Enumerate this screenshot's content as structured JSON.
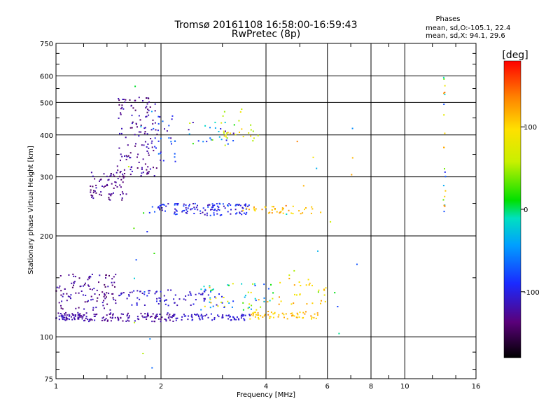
{
  "chart_data": {
    "type": "scatter",
    "title": "Tromsø 20161108 16:58:00-16:59:43",
    "subtitle": "RwPretec (8p)",
    "xlabel": "Frequency [MHz]",
    "ylabel": "Stationary phase Virtual Height [km]",
    "x_scale": "log",
    "y_scale": "log",
    "xlim": [
      1,
      16
    ],
    "ylim": [
      75,
      750
    ],
    "x_ticks": [
      1,
      2,
      4,
      6,
      8,
      10,
      16
    ],
    "x_tick_labels": [
      "1",
      "2",
      "4",
      "6",
      "8",
      "10",
      "16"
    ],
    "y_ticks": [
      75,
      100,
      200,
      300,
      400,
      500,
      600,
      750
    ],
    "y_tick_labels": [
      "75",
      "100",
      "200",
      "300",
      "400",
      "500",
      "600",
      "750"
    ],
    "grid": true,
    "phase_stats": {
      "title": "Phases",
      "line_o": "mean, sd,O:-105.1, 22.4",
      "line_x": "mean, sd,X:  94.1, 29.6"
    },
    "colorbar": {
      "label": "[deg]",
      "range": [
        -180,
        180
      ],
      "ticks": [
        100,
        0,
        -100
      ],
      "tick_labels": [
        "100",
        "0",
        "-100"
      ]
    },
    "clusters": [
      {
        "x0": 1.0,
        "x1": 1.2,
        "y0": 112,
        "y1": 118,
        "c0": -135,
        "c1": -110,
        "n": 60
      },
      {
        "x0": 1.2,
        "x1": 2.2,
        "y0": 111,
        "y1": 118,
        "c0": -140,
        "c1": -110,
        "n": 110
      },
      {
        "x0": 2.2,
        "x1": 3.6,
        "y0": 112,
        "y1": 117,
        "c0": -120,
        "c1": -100,
        "n": 70
      },
      {
        "x0": 3.6,
        "x1": 5.8,
        "y0": 113,
        "y1": 119,
        "c0": 90,
        "c1": 130,
        "n": 60
      },
      {
        "x0": 1.0,
        "x1": 1.5,
        "y0": 120,
        "y1": 155,
        "c0": -150,
        "c1": -110,
        "n": 110
      },
      {
        "x0": 1.5,
        "x1": 3.0,
        "y0": 124,
        "y1": 138,
        "c0": -125,
        "c1": -95,
        "n": 80
      },
      {
        "x0": 2.6,
        "x1": 4.2,
        "y0": 120,
        "y1": 145,
        "c0": -90,
        "c1": 120,
        "n": 60
      },
      {
        "x0": 4.2,
        "x1": 6.0,
        "y0": 125,
        "y1": 150,
        "c0": 80,
        "c1": 130,
        "n": 30
      },
      {
        "x0": 1.25,
        "x1": 1.6,
        "y0": 255,
        "y1": 310,
        "c0": -150,
        "c1": -115,
        "n": 70
      },
      {
        "x0": 1.5,
        "x1": 1.95,
        "y0": 300,
        "y1": 520,
        "c0": -150,
        "c1": -110,
        "n": 130
      },
      {
        "x0": 1.9,
        "x1": 2.2,
        "y0": 320,
        "y1": 460,
        "c0": -130,
        "c1": -60,
        "n": 30
      },
      {
        "x0": 1.85,
        "x1": 3.6,
        "y0": 230,
        "y1": 250,
        "c0": -125,
        "c1": -70,
        "n": 130
      },
      {
        "x0": 3.4,
        "x1": 5.8,
        "y0": 233,
        "y1": 245,
        "c0": 90,
        "c1": 130,
        "n": 40
      },
      {
        "x0": 2.4,
        "x1": 3.3,
        "y0": 370,
        "y1": 440,
        "c0": -130,
        "c1": 90,
        "n": 35
      },
      {
        "x0": 3.0,
        "x1": 3.8,
        "y0": 380,
        "y1": 480,
        "c0": 40,
        "c1": 110,
        "n": 20
      },
      {
        "x0": 12.9,
        "x1": 13.1,
        "y0": 215,
        "y1": 620,
        "c0": -110,
        "c1": 150,
        "n": 22
      },
      {
        "x0": 1.6,
        "x1": 2.1,
        "y0": 80,
        "y1": 600,
        "c0": -100,
        "c1": 60,
        "n": 15
      },
      {
        "x0": 4.5,
        "x1": 7.5,
        "y0": 90,
        "y1": 420,
        "c0": -100,
        "c1": 160,
        "n": 18
      }
    ]
  }
}
